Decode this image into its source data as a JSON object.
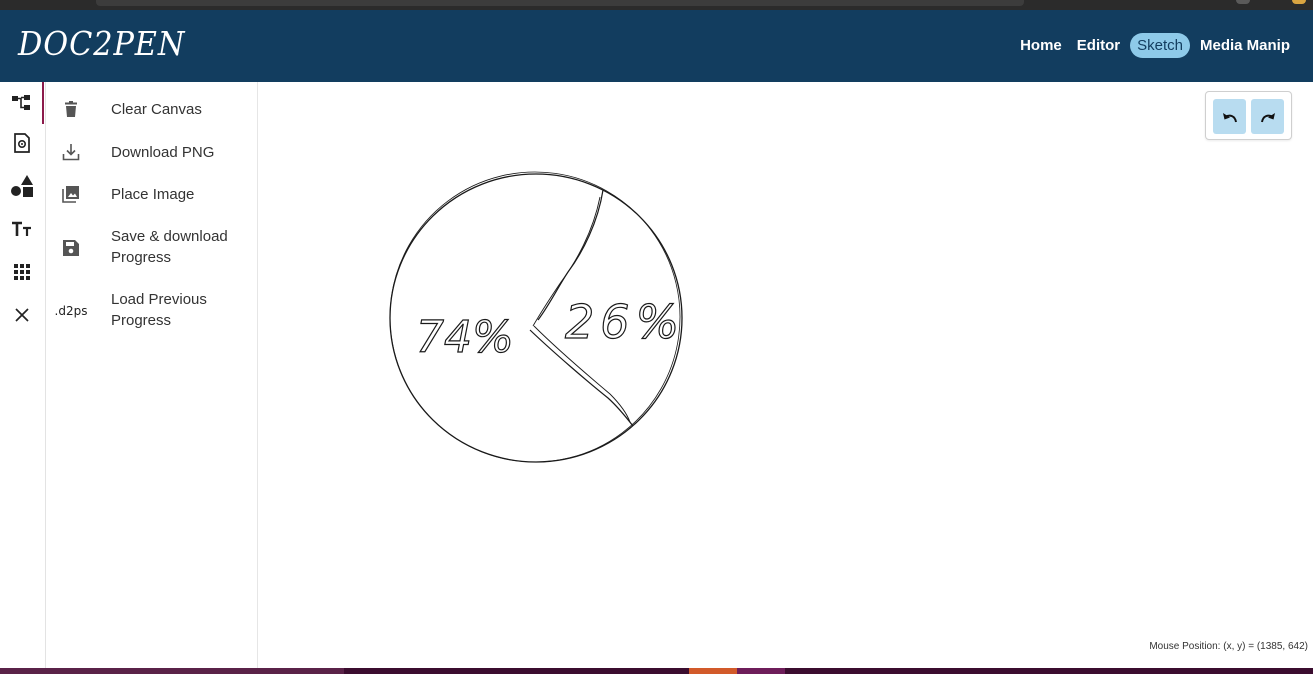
{
  "app": {
    "logo": "DOC2PEN"
  },
  "nav": {
    "links": [
      "Home",
      "Editor",
      "Sketch",
      "Media Manip"
    ],
    "active": "Sketch"
  },
  "rail": {
    "icons": [
      "hierarchy-icon",
      "settings-file-icon",
      "shapes-icon",
      "text-size-icon",
      "grid-icon",
      "close-icon"
    ]
  },
  "menu": {
    "items": [
      {
        "label": "Clear Canvas",
        "icon": "trash-icon"
      },
      {
        "label": "Download PNG",
        "icon": "download-icon"
      },
      {
        "label": "Place Image",
        "icon": "image-gallery-icon"
      },
      {
        "label_line1": "Save & download",
        "label_line2": "Progress",
        "icon": "save-icon"
      },
      {
        "label_line1": "Load Previous",
        "label_line2": "Progress",
        "icon": "d2ps-file-icon",
        "icon_text": ".d2ps"
      }
    ]
  },
  "canvas": {
    "sketch": {
      "left_text": "74%",
      "right_text": "26%"
    },
    "undo_icon": "undo-icon",
    "redo_icon": "redo-icon"
  },
  "status": {
    "mouse_position": "Mouse Position: (x, y) = (1385, 642)"
  }
}
